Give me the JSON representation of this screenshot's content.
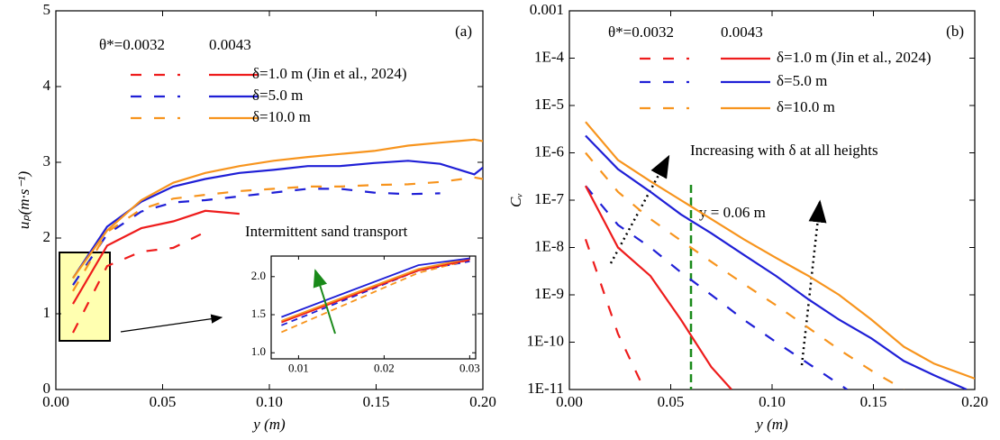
{
  "chart_data": [
    {
      "type": "line",
      "panel_label": "(a)",
      "x_label": "y (m)",
      "y_label": "uₚ(m·s⁻¹)",
      "xlim": [
        0,
        0.2
      ],
      "ylim": [
        0,
        5
      ],
      "xticks": [
        {
          "value": 0,
          "label": "0.00"
        },
        0.05,
        {
          "value": 0.1,
          "label": "0.10"
        },
        0.15,
        {
          "value": 0.2,
          "label": "0.20"
        }
      ],
      "yticks": [
        0,
        1,
        2,
        3,
        4,
        5
      ],
      "annotations": [
        "Intermittent sand transport"
      ],
      "series_groups": [
        {
          "name": "θ*=0.0032",
          "line_style": "dashed",
          "series": [
            {
              "color": "#ee1c1c",
              "x": [
                0.008,
                0.024,
                0.04,
                0.055,
                0.07
              ],
              "values": [
                0.75,
                1.63,
                1.82,
                1.87,
                2.08
              ]
            },
            {
              "color": "#1f1fd6",
              "x": [
                0.008,
                0.024,
                0.04,
                0.055,
                0.07,
                0.086,
                0.102,
                0.118,
                0.133,
                0.149,
                0.165,
                0.18
              ],
              "values": [
                1.38,
                2.05,
                2.35,
                2.47,
                2.5,
                2.55,
                2.6,
                2.65,
                2.65,
                2.6,
                2.58,
                2.59
              ]
            },
            {
              "color": "#f7941d",
              "x": [
                0.008,
                0.024,
                0.04,
                0.055,
                0.07,
                0.086,
                0.102,
                0.118,
                0.133,
                0.149,
                0.165,
                0.18,
                0.196,
                0.2
              ],
              "values": [
                1.3,
                2.08,
                2.38,
                2.52,
                2.57,
                2.62,
                2.65,
                2.68,
                2.68,
                2.7,
                2.71,
                2.74,
                2.8,
                2.78
              ]
            }
          ]
        },
        {
          "name": "0.0043",
          "line_style": "solid",
          "series": [
            {
              "name": "δ=1.0 m (Jin et al., 2024)",
              "color": "#ee1c1c",
              "x": [
                0.008,
                0.024,
                0.04,
                0.055,
                0.07,
                0.086
              ],
              "values": [
                1.13,
                1.9,
                2.13,
                2.22,
                2.36,
                2.32
              ]
            },
            {
              "name": "δ=5.0 m",
              "color": "#1f1fd6",
              "x": [
                0.008,
                0.024,
                0.04,
                0.055,
                0.07,
                0.086,
                0.102,
                0.118,
                0.133,
                0.149,
                0.165,
                0.18,
                0.196,
                0.2
              ],
              "values": [
                1.47,
                2.15,
                2.48,
                2.68,
                2.78,
                2.86,
                2.9,
                2.95,
                2.95,
                2.99,
                3.02,
                2.98,
                2.84,
                2.93
              ]
            },
            {
              "name": "δ=10.0 m",
              "color": "#f7941d",
              "x": [
                0.008,
                0.024,
                0.04,
                0.055,
                0.07,
                0.086,
                0.102,
                0.118,
                0.133,
                0.149,
                0.165,
                0.18,
                0.196,
                0.2
              ],
              "values": [
                1.47,
                2.1,
                2.5,
                2.73,
                2.86,
                2.95,
                3.02,
                3.07,
                3.11,
                3.15,
                3.22,
                3.26,
                3.3,
                3.28
              ]
            }
          ]
        }
      ]
    },
    {
      "type": "line",
      "xlim": [
        0.0068,
        0.0307
      ],
      "ylim": [
        0.92,
        2.27
      ],
      "xticks": [
        0.01,
        0.02,
        0.03
      ],
      "yticks": [
        {
          "value": 1,
          "label": "1.0"
        },
        1.5,
        {
          "value": 2,
          "label": "2.0"
        }
      ],
      "series_groups": [
        {
          "line_style": "dashed",
          "series": [
            {
              "color": "#1f1fd6",
              "x": [
                0.008,
                0.024,
                0.03
              ],
              "values": [
                1.36,
                2.08,
                2.2
              ]
            },
            {
              "color": "#f7941d",
              "x": [
                0.008,
                0.024,
                0.03
              ],
              "values": [
                1.27,
                2.05,
                2.22
              ]
            }
          ]
        },
        {
          "line_style": "solid",
          "series": [
            {
              "color": "#ee1c1c",
              "x": [
                0.008,
                0.024,
                0.03
              ],
              "values": [
                1.4,
                2.08,
                2.22
              ]
            },
            {
              "color": "#f7941d",
              "x": [
                0.008,
                0.024,
                0.03
              ],
              "values": [
                1.42,
                2.1,
                2.24
              ]
            },
            {
              "color": "#1f1fd6",
              "x": [
                0.008,
                0.024,
                0.03
              ],
              "values": [
                1.47,
                2.15,
                2.24
              ]
            }
          ]
        }
      ]
    },
    {
      "type": "line",
      "panel_label": "(b)",
      "x_label": "y (m)",
      "y_label": "Cᵥ",
      "log_y": true,
      "xlim": [
        0,
        0.2
      ],
      "ylim": [
        1e-11,
        0.001
      ],
      "xticks": [
        {
          "value": 0,
          "label": "0.00"
        },
        0.05,
        {
          "value": 0.1,
          "label": "0.10"
        },
        0.15,
        {
          "value": 0.2,
          "label": "0.20"
        }
      ],
      "yticks": [
        {
          "value": 1e-11,
          "label": "1E-11"
        },
        {
          "value": 1e-10,
          "label": "1E-10"
        },
        {
          "value": 1e-09,
          "label": "1E-9"
        },
        {
          "value": 1e-08,
          "label": "1E-8"
        },
        {
          "value": 1e-07,
          "label": "1E-7"
        },
        {
          "value": 1e-06,
          "label": "1E-6"
        },
        {
          "value": 1e-05,
          "label": "1E-5"
        },
        {
          "value": 0.0001,
          "label": "1E-4"
        },
        0.001
      ],
      "annotations": [
        "Increasing with δ at all heights",
        "y = 0.06 m"
      ],
      "vline": 0.06,
      "vline_color": "#1a8a1a",
      "series_groups": [
        {
          "name": "θ*=0.0032",
          "line_style": "dashed",
          "series": [
            {
              "color": "#ee1c1c",
              "x": [
                0.008,
                0.024,
                0.037
              ],
              "values": [
                1.5e-08,
                1.5e-10,
                1e-11
              ]
            },
            {
              "color": "#1f1fd6",
              "x": [
                0.008,
                0.024,
                0.04,
                0.055,
                0.07,
                0.086,
                0.102,
                0.118,
                0.137
              ],
              "values": [
                2e-07,
                3e-08,
                1e-08,
                3e-09,
                1e-09,
                3e-10,
                1e-10,
                3.5e-11,
                1e-11
              ]
            },
            {
              "color": "#f7941d",
              "x": [
                0.008,
                0.024,
                0.04,
                0.055,
                0.07,
                0.086,
                0.102,
                0.118,
                0.133,
                0.149,
                0.165
              ],
              "values": [
                1e-06,
                1.5e-07,
                4e-08,
                1.4e-08,
                5e-09,
                1.7e-09,
                6e-10,
                2e-10,
                7e-11,
                2.5e-11,
                1e-11
              ]
            }
          ]
        },
        {
          "name": "0.0043",
          "line_style": "solid",
          "series": [
            {
              "name": "δ=1.0 m (Jin et al., 2024)",
              "color": "#ee1c1c",
              "x": [
                0.008,
                0.024,
                0.04,
                0.055,
                0.07,
                0.08
              ],
              "values": [
                2e-07,
                1e-08,
                2.5e-09,
                3e-10,
                3e-11,
                1e-11
              ]
            },
            {
              "name": "δ=5.0 m",
              "color": "#1f1fd6",
              "x": [
                0.008,
                0.024,
                0.04,
                0.055,
                0.07,
                0.086,
                0.102,
                0.118,
                0.133,
                0.149,
                0.165,
                0.18,
                0.196
              ],
              "values": [
                2.3e-06,
                4.5e-07,
                1.5e-07,
                5e-08,
                2e-08,
                7e-09,
                2.5e-09,
                8e-10,
                3e-10,
                1.2e-10,
                4e-11,
                2e-11,
                1e-11
              ]
            },
            {
              "name": "δ=10.0 m",
              "color": "#f7941d",
              "x": [
                0.008,
                0.024,
                0.04,
                0.055,
                0.07,
                0.086,
                0.102,
                0.118,
                0.133,
                0.149,
                0.165,
                0.18,
                0.2
              ],
              "values": [
                4.5e-06,
                7e-07,
                2.5e-07,
                1e-07,
                4e-08,
                1.5e-08,
                6e-09,
                2.5e-09,
                1e-09,
                3e-10,
                8e-11,
                3.5e-11,
                1.7e-11
              ]
            }
          ]
        }
      ]
    }
  ]
}
